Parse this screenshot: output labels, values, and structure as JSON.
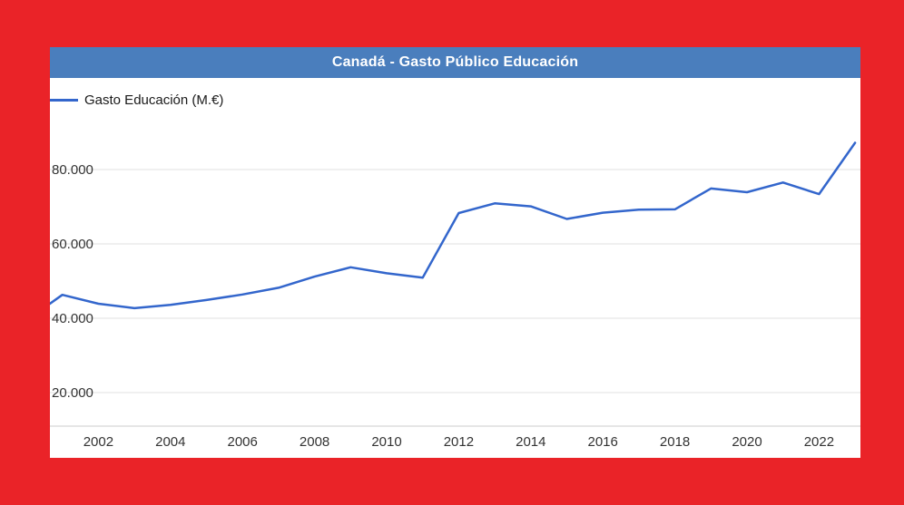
{
  "panel": {
    "title": "Canadá - Gasto Público Educación",
    "legend_label": "Gasto Educación (M.€)"
  },
  "colors": {
    "background": "#ea2328",
    "header": "#4a7ebd",
    "line": "#3366cc",
    "grid": "#e0e0e0",
    "axis_line": "#cccccc",
    "axis_text": "#333333"
  },
  "chart_data": {
    "type": "line",
    "title": "Canadá - Gasto Público Educación",
    "series": [
      {
        "name": "Gasto Educación (M.€)",
        "x": [
          2000,
          2001,
          2002,
          2003,
          2004,
          2005,
          2006,
          2007,
          2008,
          2009,
          2010,
          2011,
          2012,
          2013,
          2014,
          2015,
          2016,
          2017,
          2018,
          2019,
          2020,
          2021,
          2022,
          2023
        ],
        "values": [
          39400,
          46300,
          43900,
          42700,
          43600,
          44900,
          46400,
          48200,
          51200,
          53700,
          52100,
          50900,
          68300,
          70900,
          70100,
          66700,
          68400,
          69200,
          69300,
          74900,
          73900,
          76500,
          73400,
          87200
        ]
      }
    ],
    "xlabel": "",
    "ylabel": "",
    "x_ticks": [
      2002,
      2004,
      2006,
      2008,
      2010,
      2012,
      2014,
      2016,
      2018,
      2020,
      2022
    ],
    "y_ticks": [
      20000,
      40000,
      60000,
      80000
    ],
    "y_tick_labels": [
      "20.000",
      "40.000",
      "60.000",
      "80.000"
    ],
    "ylim": [
      11000,
      104000
    ],
    "xlim": [
      2000.65,
      2023.15
    ],
    "grid": "horizontal",
    "legend_position": "top-left"
  }
}
